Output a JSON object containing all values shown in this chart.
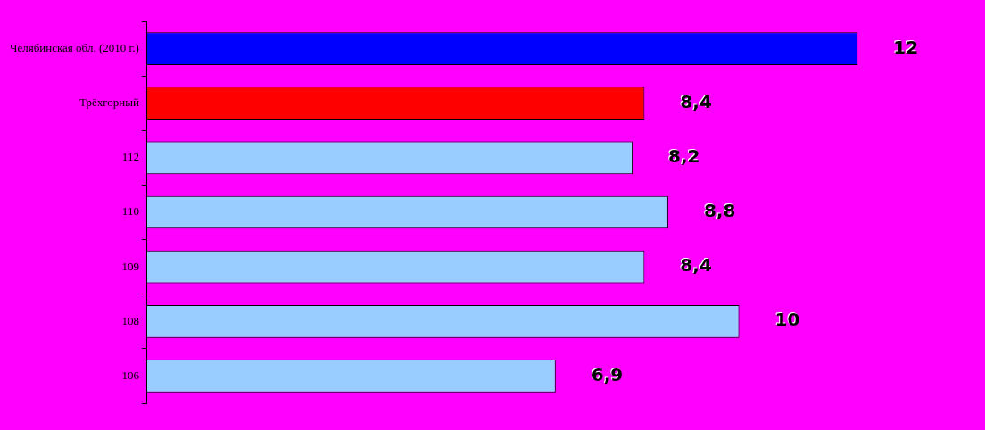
{
  "chart_data": {
    "type": "bar",
    "orientation": "horizontal",
    "categories": [
      "Челябинская обл. (2010 г.)",
      "Трёхгорный",
      "112",
      "110",
      "109",
      "108",
      "106"
    ],
    "values": [
      12,
      8.4,
      8.2,
      8.8,
      8.4,
      10,
      6.9
    ],
    "colors": [
      "#0000ff",
      "#ff0000",
      "#99ccff",
      "#99ccff",
      "#99ccff",
      "#99ccff",
      "#99ccff"
    ],
    "value_labels": [
      "12",
      "8,4",
      "8,2",
      "8,8",
      "8,4",
      "10",
      "6,9"
    ]
  }
}
